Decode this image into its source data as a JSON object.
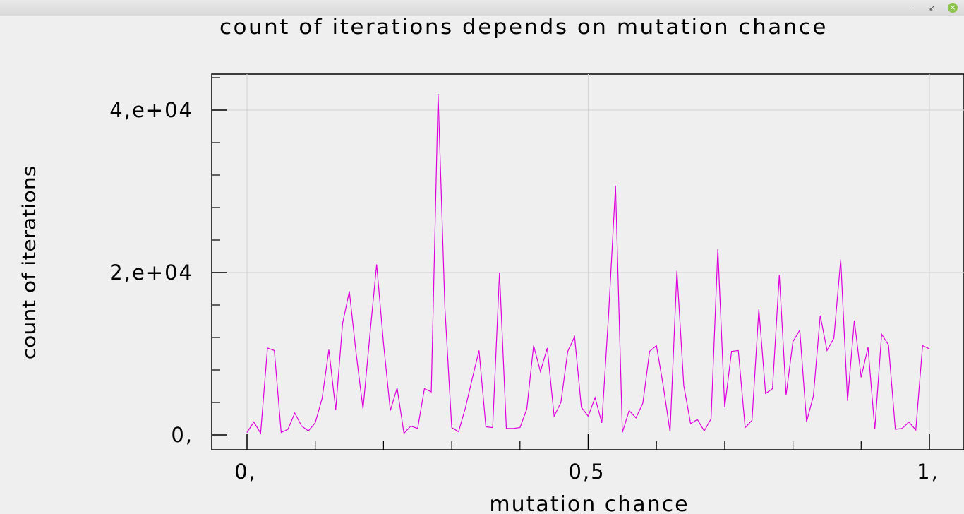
{
  "window": {
    "controls": {
      "minimize": "-",
      "restore": "↙",
      "close": "×"
    },
    "close_color": "#8cc34a"
  },
  "chart_data": {
    "type": "line",
    "title": "count of iterations depends on mutation chance",
    "xlabel": "mutation chance",
    "ylabel": "count of iterations",
    "xlim": [
      0,
      1
    ],
    "ylim": [
      0,
      44000
    ],
    "x_ticks": [
      0,
      0.5,
      1
    ],
    "x_tick_labels": [
      "0,",
      "0,5",
      "1,"
    ],
    "y_ticks": [
      0,
      20000,
      40000
    ],
    "y_tick_labels": [
      "0,",
      "2,e+04",
      "4,e+04"
    ],
    "grid": true,
    "line_color": "#dd00dd",
    "series": [
      {
        "x": [
          0.0,
          0.01,
          0.02,
          0.03,
          0.04,
          0.05,
          0.06,
          0.07,
          0.08,
          0.09,
          0.1,
          0.11,
          0.12,
          0.13,
          0.14,
          0.15,
          0.16,
          0.17,
          0.18,
          0.19,
          0.2,
          0.21,
          0.22,
          0.23,
          0.24,
          0.25,
          0.26,
          0.27,
          0.28,
          0.29,
          0.3,
          0.31,
          0.32,
          0.33,
          0.34,
          0.35,
          0.36,
          0.37,
          0.38,
          0.39,
          0.4,
          0.41,
          0.42,
          0.43,
          0.44,
          0.45,
          0.46,
          0.47,
          0.48,
          0.49,
          0.5,
          0.51,
          0.52,
          0.53,
          0.54,
          0.55,
          0.56,
          0.57,
          0.58,
          0.59,
          0.6,
          0.61,
          0.62,
          0.63,
          0.64,
          0.65,
          0.66,
          0.67,
          0.68,
          0.69,
          0.7,
          0.71,
          0.72,
          0.73,
          0.74,
          0.75,
          0.76,
          0.77,
          0.78,
          0.79,
          0.8,
          0.81,
          0.82,
          0.83,
          0.84,
          0.85,
          0.86,
          0.87,
          0.88,
          0.89,
          0.9,
          0.91,
          0.92,
          0.93,
          0.94,
          0.95,
          0.96,
          0.97,
          0.98,
          0.99,
          1.0
        ],
        "y": [
          300,
          1600,
          200,
          10700,
          10400,
          300,
          700,
          2700,
          1100,
          500,
          1500,
          4500,
          10500,
          3100,
          13700,
          17700,
          10000,
          3200,
          12300,
          21000,
          11300,
          3000,
          5800,
          200,
          1100,
          800,
          5700,
          5300,
          42000,
          15700,
          900,
          400,
          3300,
          6900,
          10400,
          1000,
          900,
          20000,
          800,
          800,
          900,
          3200,
          11000,
          7800,
          10700,
          2300,
          4000,
          10300,
          12100,
          3400,
          2300,
          4600,
          1500,
          15000,
          30700,
          300,
          3000,
          2100,
          3900,
          10300,
          11000,
          6000,
          400,
          20200,
          6100,
          1400,
          1900,
          500,
          2000,
          22900,
          3400,
          10300,
          10400,
          900,
          1800,
          15500,
          5100,
          5700,
          19700,
          4900,
          11500,
          12900,
          1600,
          4800,
          14700,
          10400,
          11900,
          21600,
          4200,
          14100,
          7100,
          10800,
          700,
          12400,
          11100,
          700,
          800,
          1600,
          600,
          11000,
          10600
        ]
      }
    ]
  }
}
